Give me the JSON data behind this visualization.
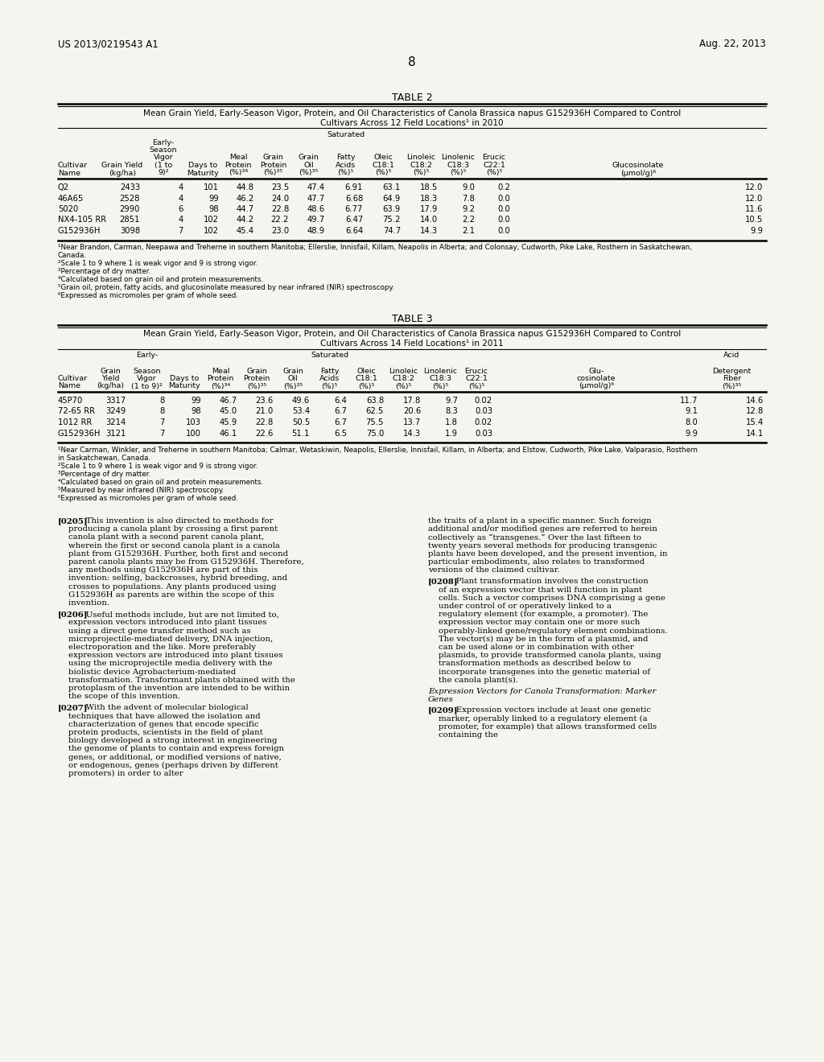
{
  "header_left": "US 2013/0219543 A1",
  "header_right": "Aug. 22, 2013",
  "page_number": "8",
  "table2_title": "TABLE 2",
  "table2_subtitle1": "Mean Grain Yield, Early-Season Vigor, Protein, and Oil Characteristics of Canola ​Brassica napus​ G152936H Compared to Control",
  "table2_subtitle2": "Cultivars Across 12 Field Locations¹ in 2010",
  "table2_data": [
    [
      "Q2",
      "2433",
      "4",
      "101",
      "44.8",
      "23.5",
      "47.4",
      "6.91",
      "63.1",
      "18.5",
      "9.0",
      "0.2",
      "12.0"
    ],
    [
      "46A65",
      "2528",
      "4",
      "99",
      "46.2",
      "24.0",
      "47.7",
      "6.68",
      "64.9",
      "18.3",
      "7.8",
      "0.0",
      "12.0"
    ],
    [
      "5020",
      "2990",
      "6",
      "98",
      "44.7",
      "22.8",
      "48.6",
      "6.77",
      "63.9",
      "17.9",
      "9.2",
      "0.0",
      "11.6"
    ],
    [
      "NX4-105 RR",
      "2851",
      "4",
      "102",
      "44.2",
      "22.2",
      "49.7",
      "6.47",
      "75.2",
      "14.0",
      "2.2",
      "0.0",
      "10.5"
    ],
    [
      "G152936H",
      "3098",
      "7",
      "102",
      "45.4",
      "23.0",
      "48.9",
      "6.64",
      "74.7",
      "14.3",
      "2.1",
      "0.0",
      "9.9"
    ]
  ],
  "table2_footnotes": [
    "¹Near Brandon, Carman, Neepawa and Treherne in southern Manitoba; Ellerslie, Innisfail, Killam, Neapolis in Alberta; and Colonsay, Cudworth, Pike Lake, Rosthern in Saskatchewan,",
    "Canada.",
    "²Scale 1 to 9 where 1 is weak vigor and 9 is strong vigor.",
    "³Percentage of dry matter.",
    "⁴Calculated based on grain oil and protein measurements.",
    "⁵Grain oil, protein, fatty acids, and glucosinolate measured by near infrared (NIR) spectroscopy.",
    "⁶Expressed as micromoles per gram of whole seed."
  ],
  "table3_title": "TABLE 3",
  "table3_subtitle1": "Mean Grain Yield, Early-Season Vigor, Protein, and Oil Characteristics of Canola ​Brassica napus​ G152936H Compared to Control",
  "table3_subtitle2": "Cultivars Across 14 Field Locations¹ in 2011",
  "table3_data": [
    [
      "45P70",
      "3317",
      "8",
      "99",
      "46.7",
      "23.6",
      "49.6",
      "6.4",
      "63.8",
      "17.8",
      "9.7",
      "0.02",
      "11.7",
      "14.6"
    ],
    [
      "72-65 RR",
      "3249",
      "8",
      "98",
      "45.0",
      "21.0",
      "53.4",
      "6.7",
      "62.5",
      "20.6",
      "8.3",
      "0.03",
      "9.1",
      "12.8"
    ],
    [
      "1012 RR",
      "3214",
      "7",
      "103",
      "45.9",
      "22.8",
      "50.5",
      "6.7",
      "75.5",
      "13.7",
      "1.8",
      "0.02",
      "8.0",
      "15.4"
    ],
    [
      "G152936H",
      "3121",
      "7",
      "100",
      "46.1",
      "22.6",
      "51.1",
      "6.5",
      "75.0",
      "14.3",
      "1.9",
      "0.03",
      "9.9",
      "14.1"
    ]
  ],
  "table3_footnotes": [
    "¹Near Carman, Winkler, and Treherne in southern Manitoba; Calmar, Wetaskiwin, Neapolis, Ellerslie, Innisfail, Killam, in Alberta; and Elstow, Cudworth, Pike Lake, Valparasio, Rosthern",
    "in Saskatchewan, Canada.",
    "²Scale 1 to 9 where 1 is weak vigor and 9 is strong vigor.",
    "³Percentage of dry matter.",
    "⁴Calculated based on grain oil and protein measurements.",
    "⁵Measured by near infrared (NIR) spectroscopy.",
    "⁶Expressed as micromoles per gram of whole seed."
  ],
  "para_0205": "This invention is also directed to methods for producing a canola plant by crossing a first parent canola plant with a second parent canola plant, wherein the first or second canola plant is a canola plant from G152936H. Further, both first and second parent canola plants may be from G152936H. Therefore, any methods using G152936H are part of this invention: selfing, backcrosses, hybrid breeding, and crosses to populations. Any plants produced using G152936H as parents are within the scope of this invention.",
  "para_0205_right": "the traits of a plant in a specific manner. Such foreign additional and/or modified genes are referred to herein collectively as “transgenes.” Over the last fifteen to twenty years several methods for producing transgenic plants have been developed, and the present invention, in particular embodiments, also relates to transformed versions of the claimed cultivar.",
  "para_0206": "Useful methods include, but are not limited to, expression vectors introduced into plant tissues using a direct gene transfer method such as microprojectile-mediated delivery, DNA injection, electroporation and the like. More preferably expression vectors are introduced into plant tissues using the microprojectile media delivery with the biolistic device Agrobacterium-mediated transformation. Transformant plants obtained with the protoplasm of the invention are intended to be within the scope of this invention.",
  "para_0207": "With the advent of molecular biological techniques that have allowed the isolation and characterization of genes that encode specific protein products, scientists in the field of plant biology developed a strong interest in engineering the genome of plants to contain and express foreign genes, or additional, or modified versions of native, or endogenous, genes (perhaps driven by different promoters) in order to alter",
  "para_0208": "Plant transformation involves the construction of an expression vector that will function in plant cells. Such a vector comprises DNA comprising a gene under control of or operatively linked to a regulatory element (for example, a promoter). The expression vector may contain one or more such operably-linked gene/regulatory element combinations. The vector(s) may be in the form of a plasmid, and can be used alone or in combination with other plasmids, to provide transformed canola plants, using transformation methods as described below to incorporate transgenes into the genetic material of the canola plant(s).",
  "para_0209_heading": "Expression Vectors for Canola Transformation: Marker\nGenes",
  "para_0209_body": "Expression vectors include at least one genetic marker, operably linked to a regulatory element (a promoter, for example) that allows transformed cells containing the",
  "bg_color": "#f5f5f0"
}
